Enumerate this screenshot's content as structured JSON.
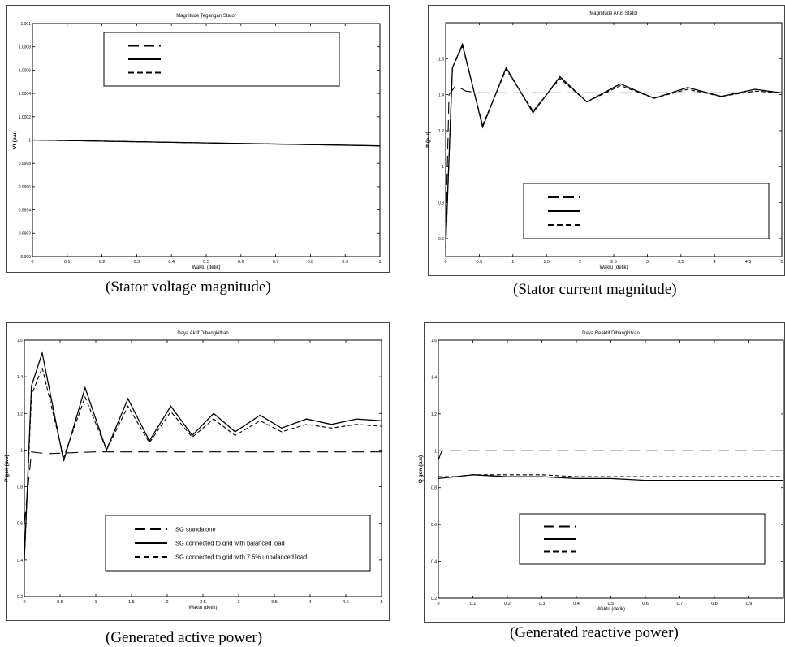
{
  "panels": [
    {
      "caption": "(Stator voltage magnitude)"
    },
    {
      "caption": "(Stator current magnitude)"
    },
    {
      "caption": "(Generated active power)"
    },
    {
      "caption": "(Generated reactive power)"
    }
  ],
  "chart_data": [
    {
      "type": "line",
      "title": "Magnitude Tegangan Stator",
      "xlabel": "Waktu (detik)",
      "ylabel": "Vt (p.u)",
      "xlim": [
        0,
        1
      ],
      "ylim": [
        0.999,
        1.001
      ],
      "xticks": [
        0,
        0.1,
        0.2,
        0.3,
        0.4,
        0.5,
        0.6,
        0.7,
        0.8,
        0.9,
        1
      ],
      "xtick_labels": [
        "0",
        "0.1",
        "0.2",
        "0.3",
        "0.4",
        "0.5",
        "0.6",
        "0.7",
        "0.8",
        "0.9",
        "1"
      ],
      "yticks": [
        0.999,
        0.9992,
        0.9994,
        0.9996,
        0.9998,
        1,
        1.0002,
        1.0004,
        1.0006,
        1.0008,
        1.001
      ],
      "ytick_labels": [
        "0.999",
        "0.9992",
        "0.9994",
        "0.9996",
        "0.9998",
        "1",
        "1.0002",
        "1.0004",
        "1.0006",
        "1.0008",
        "1.001"
      ],
      "grid": false,
      "legend_position": "top-right",
      "legend_labels": [
        "",
        "",
        ""
      ],
      "series": [
        {
          "style": "dashed",
          "x": [
            0,
            0.2,
            0.4,
            0.6,
            0.8,
            1
          ],
          "y": [
            1.0,
            0.99999,
            0.99998,
            0.99997,
            0.99996,
            0.99995
          ]
        },
        {
          "style": "solid",
          "x": [
            0,
            0.2,
            0.4,
            0.6,
            0.8,
            1
          ],
          "y": [
            1.0,
            0.99999,
            0.99998,
            0.99997,
            0.99996,
            0.99995
          ]
        },
        {
          "style": "dotted",
          "x": [
            0,
            0.2,
            0.4,
            0.6,
            0.8,
            1
          ],
          "y": [
            1.0,
            0.99999,
            0.99998,
            0.99997,
            0.99996,
            0.99995
          ]
        }
      ]
    },
    {
      "type": "line",
      "title": "Magnitude Arus Stator",
      "xlabel": "Waktu (detik)",
      "ylabel": "It (p.u)",
      "xlim": [
        0,
        5
      ],
      "ylim": [
        0.5,
        1.8
      ],
      "xticks": [
        0,
        0.5,
        1,
        1.5,
        2,
        2.5,
        3,
        3.5,
        4,
        4.5,
        5
      ],
      "xtick_labels": [
        "0",
        "0.5",
        "1",
        "1.5",
        "2",
        "2.5",
        "3",
        "3.5",
        "4",
        "4.5",
        "5"
      ],
      "yticks": [
        0.6,
        0.8,
        1,
        1.2,
        1.4,
        1.6
      ],
      "ytick_labels": [
        "0.6",
        "0.8",
        "1",
        "1.2",
        "1.4",
        "1.6"
      ],
      "grid": false,
      "legend_position": "bottom-right",
      "legend_labels": [
        "",
        "",
        ""
      ],
      "series": [
        {
          "style": "dashed",
          "x": [
            0,
            0.05,
            0.15,
            0.3,
            0.5,
            1,
            5
          ],
          "y": [
            0.6,
            1.4,
            1.45,
            1.42,
            1.41,
            1.41,
            1.41
          ]
        },
        {
          "style": "solid",
          "x": [
            0,
            0.1,
            0.25,
            0.55,
            0.9,
            1.3,
            1.7,
            2.1,
            2.6,
            3.1,
            3.6,
            4.1,
            4.6,
            5
          ],
          "y": [
            0.55,
            1.55,
            1.68,
            1.22,
            1.55,
            1.3,
            1.5,
            1.36,
            1.46,
            1.38,
            1.44,
            1.39,
            1.43,
            1.41
          ]
        },
        {
          "style": "dotted",
          "x": [
            0,
            0.1,
            0.25,
            0.55,
            0.9,
            1.3,
            1.7,
            2.1,
            2.6,
            3.1,
            3.6,
            4.1,
            4.6,
            5
          ],
          "y": [
            0.55,
            1.55,
            1.67,
            1.23,
            1.54,
            1.31,
            1.49,
            1.36,
            1.45,
            1.38,
            1.43,
            1.39,
            1.42,
            1.41
          ]
        }
      ]
    },
    {
      "type": "line",
      "title": "Daya Aktif Dibangkitkan",
      "xlabel": "Waktu (detik)",
      "ylabel": "P gen (p.u)",
      "xlim": [
        0,
        5
      ],
      "ylim": [
        0.2,
        1.6
      ],
      "xticks": [
        0,
        0.5,
        1,
        1.5,
        2,
        2.5,
        3,
        3.5,
        4,
        4.5,
        5
      ],
      "xtick_labels": [
        "0",
        "0.5",
        "1",
        "1.5",
        "2",
        "2.5",
        "3",
        "3.5",
        "4",
        "4.5",
        "5"
      ],
      "yticks": [
        0.2,
        0.4,
        0.6,
        0.8,
        1,
        1.2,
        1.4,
        1.6
      ],
      "ytick_labels": [
        "0.2",
        "0.4",
        "0.6",
        "0.8",
        "1",
        "1.2",
        "1.4",
        "1.6"
      ],
      "grid": false,
      "legend_position": "bottom-right",
      "legend_labels": [
        "SG standalone",
        "SG connected to grid with balanced load",
        "SG connected to grid with 7.5% unbalanced load"
      ],
      "series": [
        {
          "name": "SG standalone",
          "style": "dashed",
          "x": [
            0,
            0.1,
            0.3,
            1,
            5
          ],
          "y": [
            0.6,
            0.99,
            0.98,
            0.99,
            0.99
          ]
        },
        {
          "name": "SG connected to grid with balanced load",
          "style": "solid",
          "x": [
            0,
            0.1,
            0.25,
            0.55,
            0.85,
            1.15,
            1.45,
            1.75,
            2.05,
            2.35,
            2.65,
            2.95,
            3.3,
            3.6,
            3.95,
            4.3,
            4.65,
            5
          ],
          "y": [
            0.4,
            1.35,
            1.53,
            0.94,
            1.34,
            1.0,
            1.28,
            1.05,
            1.24,
            1.08,
            1.2,
            1.1,
            1.19,
            1.12,
            1.17,
            1.14,
            1.17,
            1.16
          ]
        },
        {
          "name": "SG connected to grid with 7.5% unbalanced load",
          "style": "dotted",
          "x": [
            0,
            0.1,
            0.25,
            0.55,
            0.85,
            1.15,
            1.45,
            1.75,
            2.05,
            2.35,
            2.65,
            2.95,
            3.3,
            3.6,
            3.95,
            4.3,
            4.65,
            5
          ],
          "y": [
            0.4,
            1.3,
            1.45,
            0.96,
            1.29,
            1.0,
            1.24,
            1.04,
            1.21,
            1.07,
            1.17,
            1.08,
            1.16,
            1.1,
            1.14,
            1.12,
            1.14,
            1.13
          ]
        }
      ]
    },
    {
      "type": "line",
      "title": "Daya Reaktif Dibangkitkan",
      "xlabel": "Waktu (detik)",
      "ylabel": "Q gen (p.u)",
      "xlim": [
        0,
        1
      ],
      "ylim": [
        0.2,
        1.6
      ],
      "xticks": [
        0,
        0.1,
        0.2,
        0.3,
        0.4,
        0.5,
        0.6,
        0.7,
        0.8,
        0.9
      ],
      "xtick_labels": [
        "0",
        "0.1",
        "0.2",
        "0.3",
        "0.4",
        "0.5",
        "0.6",
        "0.7",
        "0.8",
        "0.9"
      ],
      "yticks": [
        0.2,
        0.4,
        0.6,
        0.8,
        1,
        1.2,
        1.4,
        1.6
      ],
      "ytick_labels": [
        "0.2",
        "0.4",
        "0.6",
        "0.8",
        "1",
        "1.2",
        "1.4",
        "1.6"
      ],
      "grid": false,
      "legend_position": "bottom-right",
      "legend_labels": [
        "",
        "",
        ""
      ],
      "series": [
        {
          "style": "dashed",
          "x": [
            0,
            0.01,
            0.05,
            1
          ],
          "y": [
            0.95,
            1.0,
            1.0,
            1.0
          ]
        },
        {
          "style": "solid",
          "x": [
            0,
            0.05,
            0.1,
            0.2,
            0.3,
            0.4,
            0.5,
            0.6,
            0.7,
            0.8,
            0.9,
            1
          ],
          "y": [
            0.85,
            0.86,
            0.87,
            0.86,
            0.86,
            0.85,
            0.85,
            0.84,
            0.84,
            0.84,
            0.84,
            0.84
          ]
        },
        {
          "style": "dotted",
          "x": [
            0,
            0.05,
            0.1,
            0.2,
            0.3,
            0.4,
            0.5,
            0.6,
            0.7,
            0.8,
            0.9,
            1
          ],
          "y": [
            0.86,
            0.86,
            0.87,
            0.87,
            0.87,
            0.86,
            0.86,
            0.86,
            0.86,
            0.86,
            0.86,
            0.86
          ]
        }
      ]
    }
  ]
}
